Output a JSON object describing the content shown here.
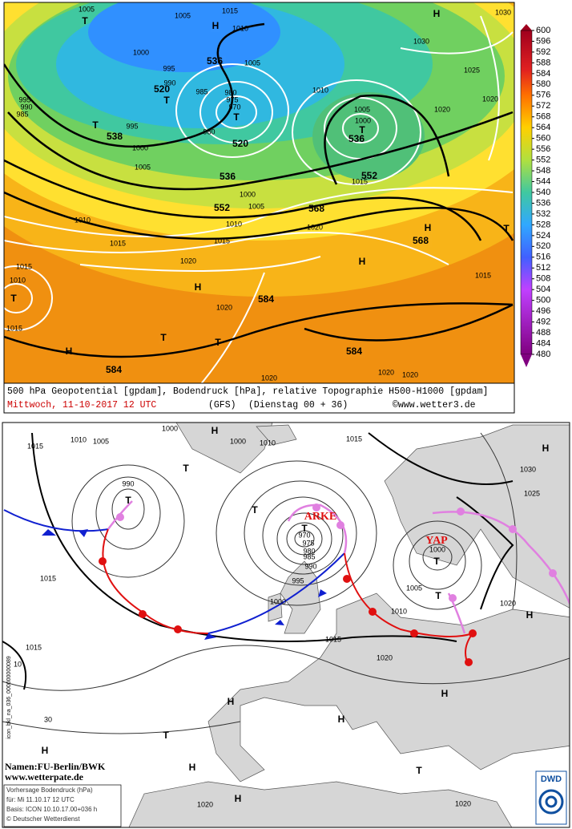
{
  "top_map": {
    "caption": "500 hPa Geopotential [gpdam], Bodendruck [hPa], relative Topographie H500-H1000 [gpdam]",
    "date": "Mittwoch, 11-10-2017  12 UTC",
    "model": "(GFS)",
    "run": "(Dienstag 00 + 36)",
    "site": "©www.wetter3.de",
    "colorbar": {
      "lim": [
        480,
        600
      ],
      "ticks": [
        600,
        596,
        592,
        588,
        584,
        580,
        576,
        572,
        568,
        564,
        560,
        556,
        552,
        548,
        544,
        540,
        536,
        532,
        528,
        524,
        520,
        516,
        512,
        508,
        504,
        500,
        496,
        492,
        488,
        484,
        480
      ]
    },
    "labels": [
      "1005",
      "T",
      "1005",
      "1015",
      "H",
      "1010",
      "1000",
      "995",
      "536",
      "1005",
      "990",
      "520",
      "T",
      "985",
      "980",
      "975",
      "970",
      "T",
      "1010",
      "995",
      "990",
      "985",
      "T",
      "995",
      "538",
      "980",
      "520",
      "1005",
      "1000",
      "T",
      "536",
      "1020",
      "1000",
      "1005",
      "552",
      "1015",
      "536",
      "1000",
      "552",
      "1005",
      "568",
      "1010",
      "1010",
      "1020",
      "H",
      "568",
      "T",
      "1015",
      "1015",
      "1020",
      "H",
      "1015",
      "1010",
      "T",
      "H",
      "1015",
      "584",
      "1020",
      "1015",
      "T",
      "T",
      "H",
      "584",
      "584",
      "1020",
      "1020",
      "1020",
      "H",
      "1030",
      "1030",
      "1025",
      "1020"
    ]
  },
  "bottom_map": {
    "labels": [
      "1000",
      "H",
      "1000",
      "1010",
      "1015",
      "1015",
      "1010",
      "1005",
      "H",
      "T",
      "1030",
      "990",
      "T",
      "T",
      "1025",
      "T",
      "970",
      "975",
      "980",
      "985",
      "990",
      "1000",
      "T",
      "1015",
      "995",
      "1005",
      "T",
      "1020",
      "1000",
      "1010",
      "H",
      "1015",
      "1015",
      "10",
      "1020",
      "H",
      "H",
      "H",
      "T",
      "H",
      "30",
      "H",
      "T",
      "H",
      "1020",
      "1020"
    ],
    "systems": [
      "ARKE",
      "YAP"
    ],
    "side_code": "icon_bkl_na_036_000000000089",
    "names": "Namen:FU-Berlin/BWK",
    "url": "www.wetterpate.de",
    "info": [
      "Vorhersage Bodendruck (hPa)",
      "für:  Mi 11.10.17  12 UTC",
      "Basis: ICON  10.10.17.00+036 h",
      "© Deutscher Wetterdienst"
    ],
    "logo": "DWD"
  }
}
